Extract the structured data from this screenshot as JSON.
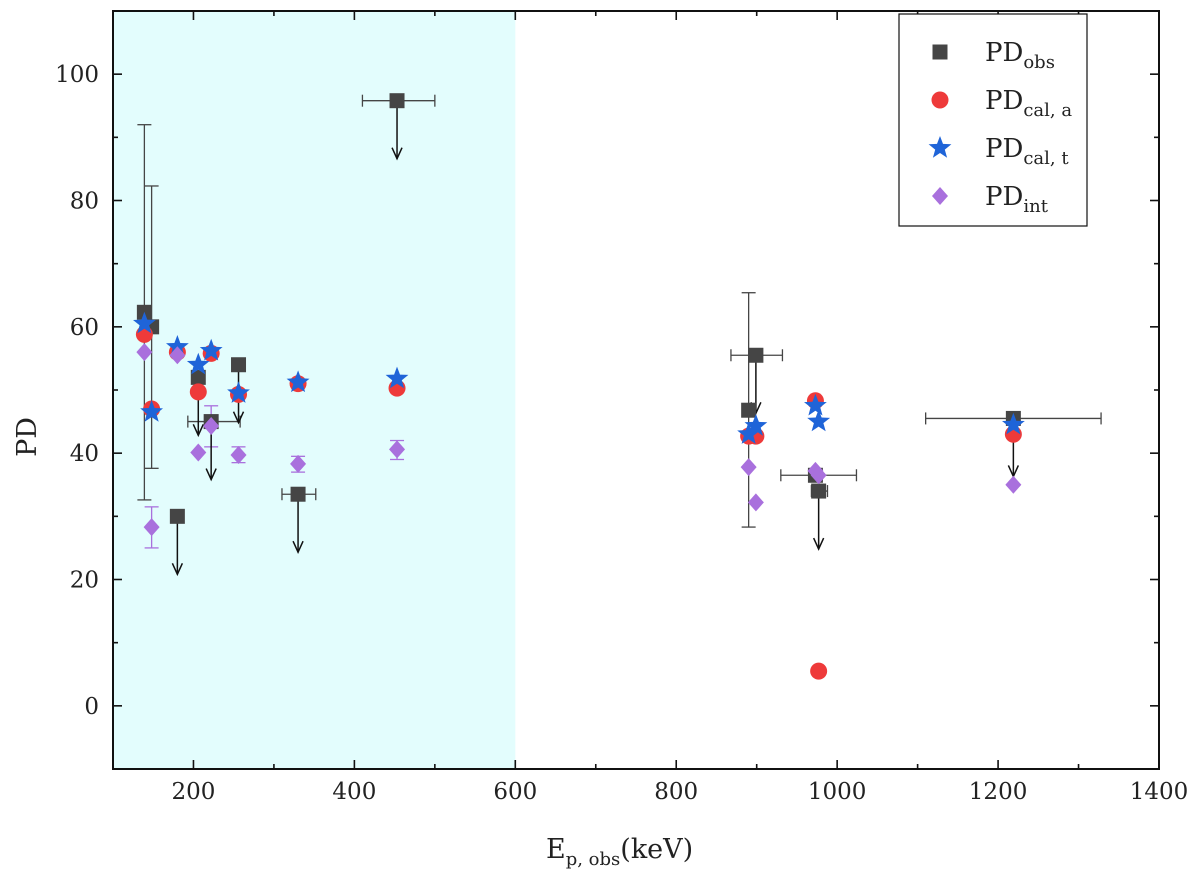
{
  "chart_data": {
    "type": "scatter",
    "xlabel": "E",
    "xlabel_sub": "p, obs",
    "xlabel_unit": "(keV)",
    "ylabel": "PD",
    "xlim": [
      100,
      1400
    ],
    "ylim": [
      -10,
      110
    ],
    "xticks": [
      200,
      400,
      600,
      800,
      1000,
      1200,
      1400
    ],
    "yticks": [
      0,
      20,
      40,
      60,
      80,
      100
    ],
    "shaded_region": {
      "x": [
        100,
        600
      ],
      "color": "#e3fdfd"
    },
    "legend_position": "top-right",
    "series": [
      {
        "name": "PD",
        "name_sub": "obs",
        "marker": "square",
        "color": "#454545",
        "points": [
          {
            "x": 139,
            "y": 62.3,
            "yerr": [
              32.6,
              92.0
            ]
          },
          {
            "x": 148,
            "y": 60.0,
            "yerr": [
              37.6,
              82.3
            ]
          },
          {
            "x": 180,
            "y": 30.0,
            "upper_limit": true
          },
          {
            "x": 206,
            "y": 52.0,
            "upper_limit": true
          },
          {
            "x": 222,
            "y": 45.0,
            "xerr": [
              193,
              258
            ],
            "upper_limit": true
          },
          {
            "x": 256,
            "y": 54.0,
            "upper_limit": true
          },
          {
            "x": 330,
            "y": 33.5,
            "xerr": [
              310,
              352
            ],
            "upper_limit": true
          },
          {
            "x": 453,
            "y": 95.8,
            "xerr": [
              410,
              500
            ],
            "upper_limit": true
          },
          {
            "x": 890,
            "y": 46.8,
            "yerr": [
              28.3,
              65.4
            ]
          },
          {
            "x": 899,
            "y": 55.5,
            "xerr": [
              868,
              932
            ],
            "upper_limit": true
          },
          {
            "x": 973,
            "y": 36.5,
            "xerr": [
              930,
              1024
            ]
          },
          {
            "x": 977,
            "y": 34.0,
            "xerr": [
              968,
              988
            ],
            "upper_limit": true
          },
          {
            "x": 1219,
            "y": 45.5,
            "xerr": [
              1110,
              1328
            ],
            "upper_limit": true
          }
        ]
      },
      {
        "name": "PD",
        "name_sub": "cal, a",
        "marker": "circle",
        "color": "#ee3a3a",
        "points": [
          {
            "x": 139,
            "y": 58.8
          },
          {
            "x": 148,
            "y": 47.0
          },
          {
            "x": 180,
            "y": 56.0
          },
          {
            "x": 206,
            "y": 49.7
          },
          {
            "x": 222,
            "y": 55.8
          },
          {
            "x": 256,
            "y": 49.3
          },
          {
            "x": 330,
            "y": 51.0
          },
          {
            "x": 453,
            "y": 50.3
          },
          {
            "x": 890,
            "y": 42.7
          },
          {
            "x": 899,
            "y": 42.7
          },
          {
            "x": 973,
            "y": 48.3
          },
          {
            "x": 977,
            "y": 5.5
          },
          {
            "x": 1219,
            "y": 43.0
          }
        ]
      },
      {
        "name": "PD",
        "name_sub": "cal, t",
        "marker": "star",
        "color": "#1f64d8",
        "points": [
          {
            "x": 139,
            "y": 60.5
          },
          {
            "x": 148,
            "y": 46.5
          },
          {
            "x": 180,
            "y": 56.8
          },
          {
            "x": 206,
            "y": 54.0
          },
          {
            "x": 222,
            "y": 56.2
          },
          {
            "x": 256,
            "y": 49.5
          },
          {
            "x": 330,
            "y": 51.2
          },
          {
            "x": 453,
            "y": 51.8
          },
          {
            "x": 890,
            "y": 43.0
          },
          {
            "x": 899,
            "y": 44.3
          },
          {
            "x": 973,
            "y": 47.5
          },
          {
            "x": 977,
            "y": 45.0
          },
          {
            "x": 1219,
            "y": 44.5
          }
        ]
      },
      {
        "name": "PD",
        "name_sub": "int",
        "marker": "diamond",
        "color": "#a970dd",
        "points": [
          {
            "x": 139,
            "y": 56.0
          },
          {
            "x": 148,
            "y": 28.3,
            "yerr": [
              25.0,
              31.5
            ]
          },
          {
            "x": 180,
            "y": 55.5
          },
          {
            "x": 206,
            "y": 40.1
          },
          {
            "x": 222,
            "y": 44.3,
            "yerr": [
              41.0,
              47.5
            ]
          },
          {
            "x": 256,
            "y": 39.7,
            "yerr": [
              38.5,
              41.0
            ]
          },
          {
            "x": 330,
            "y": 38.3,
            "yerr": [
              37.0,
              39.5
            ]
          },
          {
            "x": 453,
            "y": 40.6,
            "yerr": [
              39.0,
              42.0
            ]
          },
          {
            "x": 890,
            "y": 37.8
          },
          {
            "x": 899,
            "y": 32.2
          },
          {
            "x": 973,
            "y": 37.2
          },
          {
            "x": 977,
            "y": 36.5
          },
          {
            "x": 1219,
            "y": 35.0
          }
        ]
      }
    ]
  }
}
